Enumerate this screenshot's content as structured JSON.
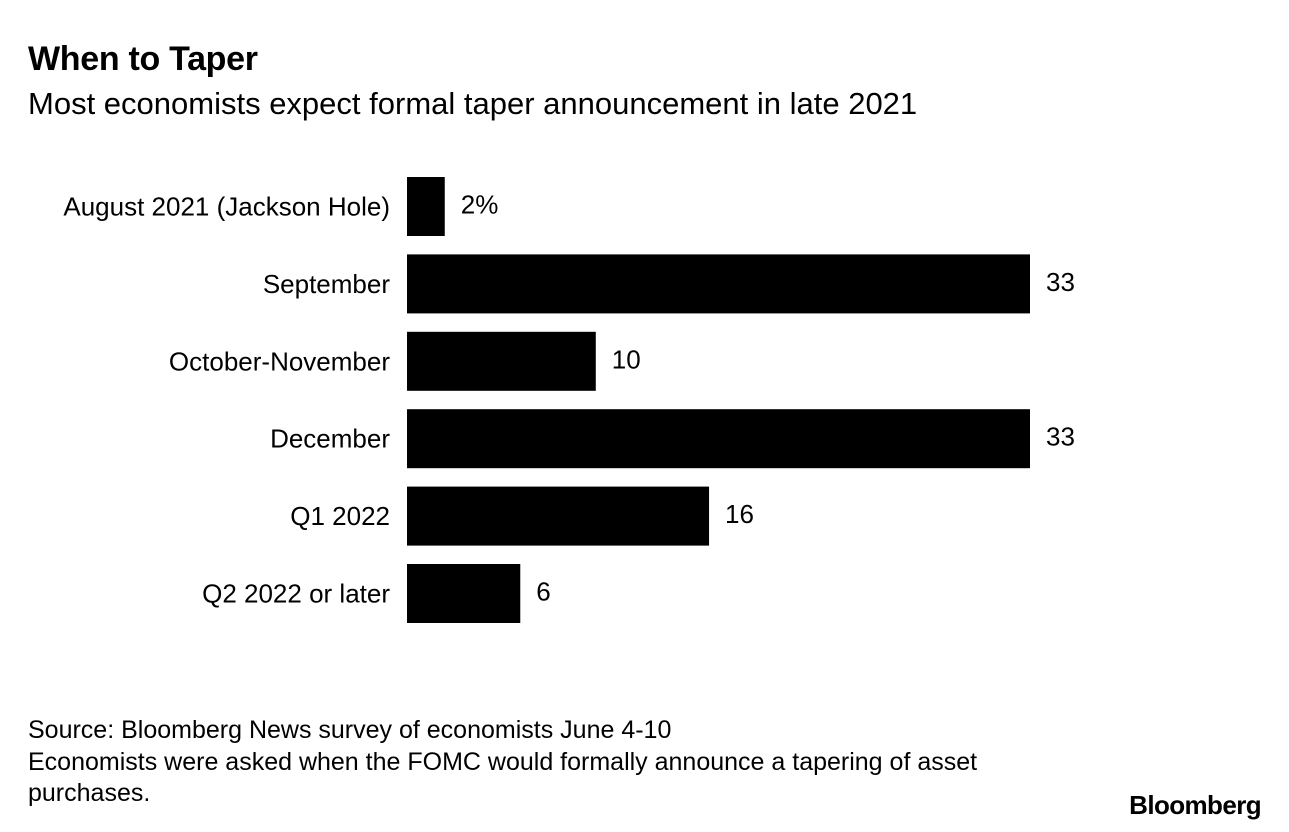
{
  "chart_data": {
    "type": "bar",
    "orientation": "horizontal",
    "title": "When to Taper",
    "subtitle": "Most economists expect formal taper announcement in late 2021",
    "categories": [
      "August 2021 (Jackson Hole)",
      "September",
      "October-November",
      "December",
      "Q1 2022",
      "Q2 2022 or later"
    ],
    "values": [
      2,
      33,
      10,
      33,
      16,
      6
    ],
    "value_labels": [
      "2%",
      "33",
      "10",
      "33",
      "16",
      "6"
    ],
    "xlim": [
      0,
      33
    ],
    "xlabel": "",
    "ylabel": "",
    "bar_color": "#000000"
  },
  "footer": {
    "source": "Source: Bloomberg News survey of economists June 4-10",
    "note": "Economists were asked when the FOMC would formally announce a tapering of asset purchases."
  },
  "brand": "Bloomberg"
}
